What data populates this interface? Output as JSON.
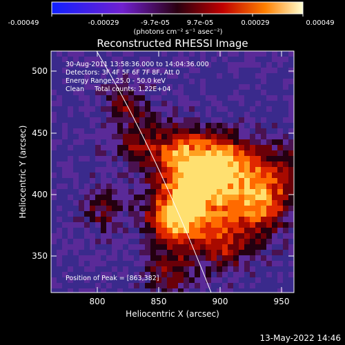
{
  "colorbar": {
    "tick_labels": [
      "-0.00049",
      "-0.00029",
      "-9.7e-05",
      "9.7e-05",
      "0.00029",
      "0.00049"
    ],
    "units_label": "(photons cm⁻² s⁻¹ asec⁻²)"
  },
  "plot": {
    "title": "Reconstructed RHESSI Image",
    "xlabel": "Heliocentric X (arcsec)",
    "ylabel": "Heliocentric Y (arcsec)",
    "x_tick_labels": [
      "800",
      "850",
      "900",
      "950"
    ],
    "y_tick_labels": [
      "350",
      "400",
      "450",
      "500"
    ],
    "info_lines": [
      "30-Aug-2011 13:58:36.000 to 14:04:36.000",
      "Detectors: 3F 4F 5F 6F 7F 8F, Att 0",
      "Energy Range: 25.0 - 50.0 keV",
      "Clean     Total counts: 1.22E+04"
    ],
    "peak_label": "Position of Peak = [863,382]"
  },
  "footer": {
    "date_label": "13-May-2022 14:46"
  },
  "colors": {
    "background": "#000000",
    "text": "#ffffff",
    "limb_line": "#ffffff"
  }
}
